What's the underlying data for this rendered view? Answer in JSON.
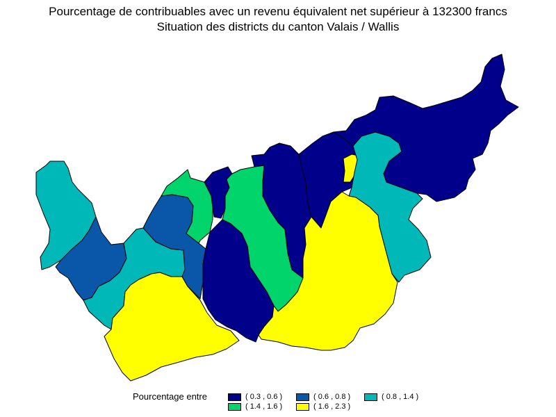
{
  "title": "Pourcentage de contribuables avec un revenu équivalent net supérieur à 132300 francs",
  "subtitle": "Situation des districts du canton Valais / Wallis",
  "legend": {
    "title": "Pourcentage entre",
    "classes": [
      {
        "label": "( 0.3 , 0.6 )",
        "color": "#00008b"
      },
      {
        "label": "( 0.6 , 0.8 )",
        "color": "#0a56a8"
      },
      {
        "label": "( 0.8 , 1.4 )",
        "color": "#00b8b8"
      },
      {
        "label": "( 1.4 , 1.6 )",
        "color": "#00d46a"
      },
      {
        "label": "( 1.6 , 2.3 )",
        "color": "#ffff00"
      }
    ]
  },
  "districts": [
    {
      "id": "west-tip",
      "class": 2
    },
    {
      "id": "southwest-blue",
      "class": 1
    },
    {
      "id": "west-teal",
      "class": 2
    },
    {
      "id": "southwest-yellow",
      "class": 4
    },
    {
      "id": "center-west-blue",
      "class": 1
    },
    {
      "id": "northwest-green",
      "class": 3
    },
    {
      "id": "small-navy",
      "class": 0
    },
    {
      "id": "center-green",
      "class": 3
    },
    {
      "id": "center-navy-south",
      "class": 0
    },
    {
      "id": "center-navy-north",
      "class": 0
    },
    {
      "id": "east-navy-left",
      "class": 0
    },
    {
      "id": "small-yellow",
      "class": 4
    },
    {
      "id": "east-teal",
      "class": 2
    },
    {
      "id": "south-yellow",
      "class": 4
    },
    {
      "id": "northeast-navy",
      "class": 0
    }
  ]
}
